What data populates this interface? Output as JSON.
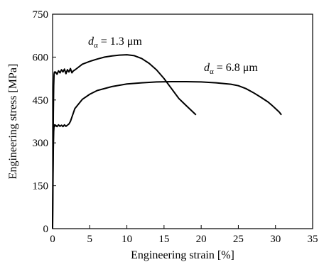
{
  "chart_data": {
    "type": "line",
    "xlabel": "Engineering strain [%]",
    "ylabel": "Engineering stress [MPa]",
    "xlim": [
      0,
      35
    ],
    "ylim": [
      0,
      750
    ],
    "xticks": [
      0,
      5,
      10,
      15,
      20,
      25,
      30,
      35
    ],
    "yticks": [
      0,
      150,
      300,
      450,
      600,
      750
    ],
    "grid": false,
    "series": [
      {
        "color": "#000000",
        "x": [
          0,
          0.05,
          0.1,
          0.15,
          0.2,
          0.25,
          0.3,
          0.4,
          0.6,
          0.8,
          1.0,
          1.2,
          1.4,
          1.6,
          1.8,
          2.0,
          2.2,
          2.4,
          2.6,
          2.8,
          3.0,
          3.5,
          4,
          5,
          6,
          7,
          8,
          9,
          10,
          11,
          12,
          13,
          14,
          15,
          16,
          17,
          18,
          19.3
        ],
        "y": [
          0,
          200,
          400,
          500,
          540,
          548,
          545,
          548,
          540,
          552,
          545,
          556,
          548,
          558,
          542,
          556,
          548,
          560,
          545,
          552,
          555,
          565,
          575,
          585,
          593,
          600,
          604,
          607,
          608,
          605,
          595,
          578,
          555,
          525,
          490,
          455,
          430,
          398
        ]
      },
      {
        "color": "#000000",
        "x": [
          0,
          0.05,
          0.1,
          0.15,
          0.2,
          0.25,
          0.3,
          0.4,
          0.6,
          0.8,
          1.0,
          1.2,
          1.4,
          1.6,
          1.8,
          2.0,
          2.2,
          2.4,
          2.6,
          3,
          4,
          5,
          6,
          8,
          10,
          12,
          14,
          16,
          18,
          20,
          22,
          24,
          25,
          26,
          27,
          28,
          29,
          29.5,
          30,
          30.5,
          30.8
        ],
        "y": [
          0,
          150,
          280,
          340,
          360,
          363,
          358,
          362,
          357,
          363,
          358,
          362,
          357,
          363,
          358,
          362,
          366,
          375,
          390,
          420,
          452,
          470,
          483,
          497,
          506,
          510,
          513,
          514,
          514,
          513,
          510,
          505,
          500,
          490,
          476,
          460,
          443,
          432,
          420,
          408,
          398
        ]
      }
    ],
    "annotations": [
      {
        "d": "d",
        "sub": "α",
        "rest": " = 1.3 μm"
      },
      {
        "d": "d",
        "sub": "α",
        "rest": " = 6.8 μm"
      }
    ]
  }
}
